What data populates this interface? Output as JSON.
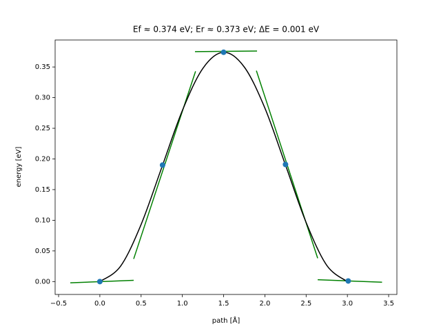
{
  "chart_data": {
    "type": "neb",
    "title": "Ef ≈ 0.374 eV; Er ≈ 0.373 eV; ΔE = 0.001 eV",
    "xlabel": "path [Å]",
    "ylabel": "energy [eV]",
    "xlim": [
      -0.542,
      3.6
    ],
    "ylim": [
      -0.021,
      0.394
    ],
    "xticks": [
      {
        "value": -0.5,
        "label": "−0.5"
      },
      {
        "value": 0,
        "label": "0.0"
      },
      0.5,
      {
        "value": 1,
        "label": "1.0"
      },
      1.5,
      {
        "value": 2,
        "label": "2.0"
      },
      2.5,
      {
        "value": 3,
        "label": "3.0"
      },
      3.5
    ],
    "yticks": [
      {
        "value": 0,
        "label": "0.00"
      },
      0.05,
      {
        "value": 0.1,
        "label": "0.10"
      },
      0.15,
      {
        "value": 0.2,
        "label": "0.20"
      },
      0.25,
      {
        "value": 0.3,
        "label": "0.30"
      },
      0.35
    ],
    "curve": {
      "color": "#000000",
      "x": [
        0,
        0.25,
        0.5,
        0.75,
        1.0,
        1.25,
        1.5,
        1.75,
        2.0,
        2.25,
        2.5,
        2.75,
        3.0,
        3.01
      ],
      "y": [
        0,
        0.0249,
        0.0931,
        0.186,
        0.279,
        0.348,
        0.374,
        0.35,
        0.283,
        0.19,
        0.0964,
        0.0265,
        0,
        0.001
      ]
    },
    "points": {
      "color": "#1f77b4",
      "x": [
        0,
        0.76,
        1.5,
        2.25,
        3.01
      ],
      "y": [
        0,
        0.19,
        0.374,
        0.191,
        0.001
      ]
    },
    "tangent_color": "#008000",
    "tangents": [
      {
        "x": [
          -0.358,
          0.41
        ],
        "y": [
          -0.002,
          0.002
        ]
      },
      {
        "x": [
          0.41,
          1.16
        ],
        "y": [
          0.037,
          0.343
        ]
      },
      {
        "x": [
          1.153,
          1.905
        ],
        "y": [
          0.375,
          0.376
        ]
      },
      {
        "x": [
          1.897,
          2.64
        ],
        "y": [
          0.344,
          0.038
        ]
      },
      {
        "x": [
          2.64,
          3.42
        ],
        "y": [
          0.003,
          -0.001
        ]
      }
    ]
  }
}
